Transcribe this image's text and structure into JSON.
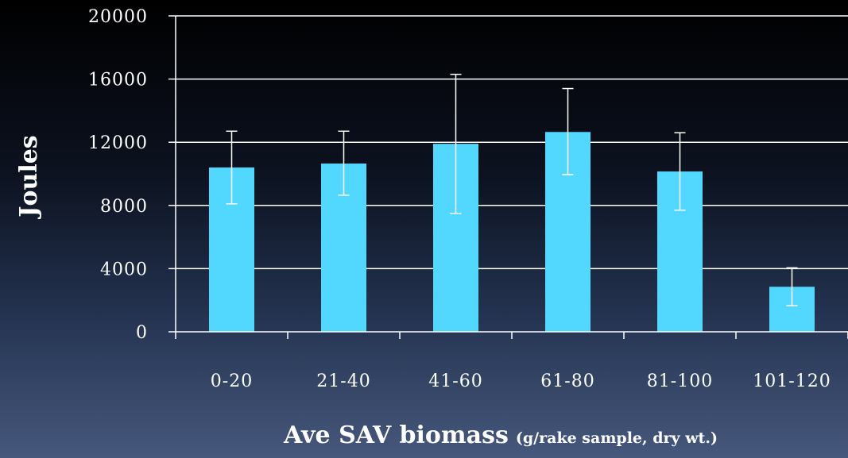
{
  "chart_data": {
    "type": "bar",
    "title": "",
    "xlabel": "Ave SAV biomass",
    "xlabel_suffix": "(g/rake sample, dry wt.)",
    "ylabel": "Joules",
    "categories": [
      "0-20",
      "21-40",
      "41-60",
      "61-80",
      "81-100",
      "101-120"
    ],
    "values": [
      10400,
      10650,
      11900,
      12650,
      10150,
      2850
    ],
    "error_low": [
      8100,
      8650,
      7500,
      9950,
      7700,
      1650
    ],
    "error_high": [
      12700,
      12700,
      16300,
      15400,
      12600,
      4050
    ],
    "ylim": [
      0,
      20000
    ],
    "yticks": [
      "0",
      "4000",
      "8000",
      "12000",
      "16000",
      "20000"
    ],
    "grid": true,
    "legend": "none",
    "colors": {
      "bar": "#52d7ff",
      "axis": "#ffffff",
      "grid": "#ffffff",
      "error_bar": "#ffffff"
    }
  }
}
